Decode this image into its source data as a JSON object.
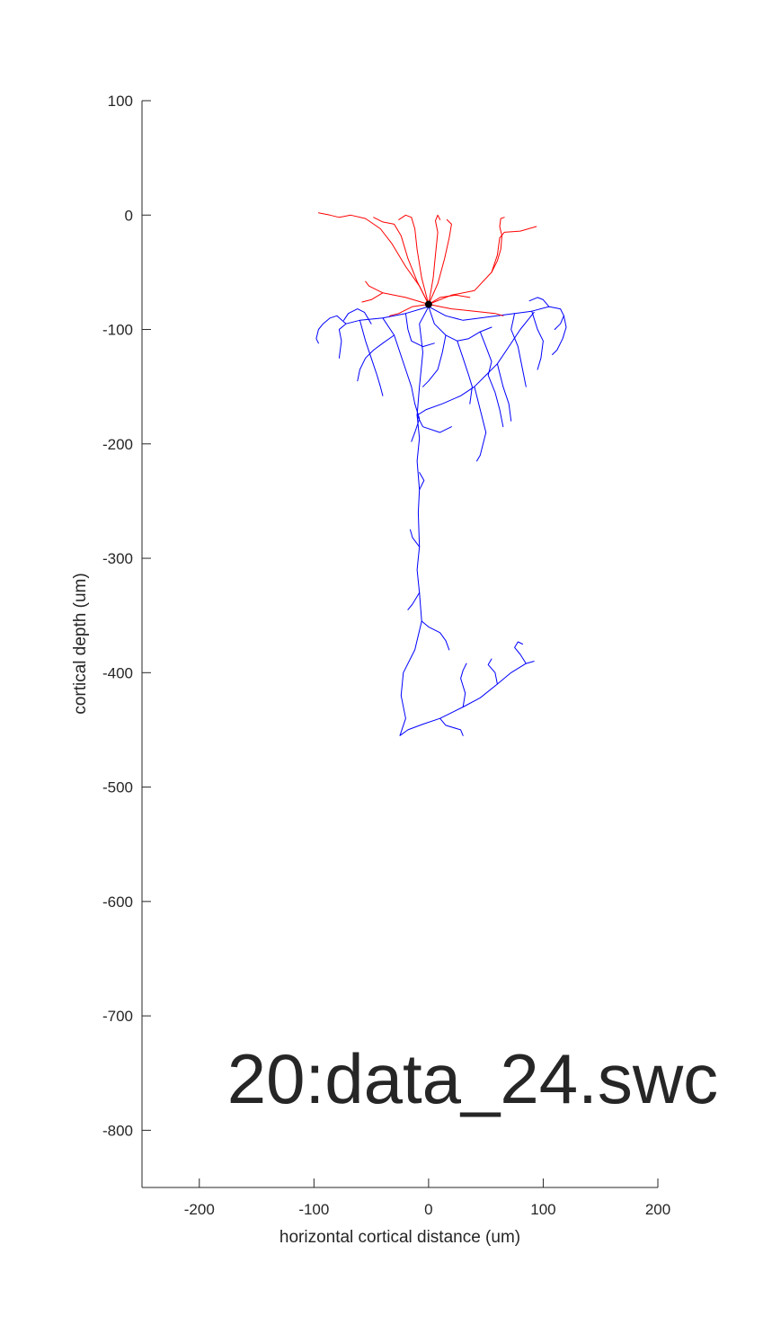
{
  "chart_data": {
    "type": "line",
    "title": "20:data_24.swc",
    "xlabel": "horizontal cortical distance (um)",
    "ylabel": "cortical depth (um)",
    "xlim": [
      -250,
      200
    ],
    "ylim": [
      -850,
      100
    ],
    "x_ticks": [
      -200,
      -100,
      0,
      100,
      200
    ],
    "y_ticks": [
      100,
      0,
      -100,
      -200,
      -300,
      -400,
      -500,
      -600,
      -700,
      -800
    ],
    "x_tick_labels": [
      "-200",
      "-100",
      "0",
      "100",
      "200"
    ],
    "y_tick_labels": [
      "100",
      "0",
      "-100",
      "-200",
      "-300",
      "-400",
      "-500",
      "-600",
      "-700",
      "-800"
    ],
    "grid": false,
    "box": "left-bottom axes only",
    "colors": {
      "dendrite": "#ff0000",
      "axon": "#0000ff",
      "soma": "#000000",
      "axes": "#262626"
    },
    "soma": {
      "x": 0,
      "y": -78
    },
    "dendrites": [
      [
        [
          0,
          -78
        ],
        [
          -8,
          -62
        ],
        [
          -20,
          -45
        ],
        [
          -32,
          -25
        ],
        [
          -42,
          -12
        ],
        [
          -55,
          -3
        ],
        [
          -68,
          0
        ],
        [
          -78,
          -2
        ],
        [
          -86,
          0
        ],
        [
          -96,
          2
        ]
      ],
      [
        [
          0,
          -78
        ],
        [
          -10,
          -58
        ],
        [
          -18,
          -38
        ],
        [
          -24,
          -18
        ],
        [
          -30,
          -8
        ],
        [
          -40,
          -6
        ],
        [
          -48,
          -2
        ]
      ],
      [
        [
          0,
          -78
        ],
        [
          -6,
          -55
        ],
        [
          -10,
          -30
        ],
        [
          -12,
          -12
        ],
        [
          -15,
          -2
        ],
        [
          -20,
          0
        ],
        [
          -26,
          -4
        ]
      ],
      [
        [
          0,
          -78
        ],
        [
          4,
          -55
        ],
        [
          6,
          -35
        ],
        [
          8,
          -15
        ],
        [
          6,
          -5
        ],
        [
          8,
          0
        ],
        [
          10,
          -4
        ]
      ],
      [
        [
          0,
          -78
        ],
        [
          8,
          -60
        ],
        [
          14,
          -38
        ],
        [
          18,
          -20
        ],
        [
          20,
          -8
        ],
        [
          16,
          -4
        ]
      ],
      [
        [
          0,
          -78
        ],
        [
          20,
          -70
        ],
        [
          40,
          -66
        ],
        [
          55,
          -50
        ],
        [
          60,
          -35
        ],
        [
          62,
          -20
        ],
        [
          66,
          -15
        ],
        [
          80,
          -14
        ],
        [
          94,
          -10
        ]
      ],
      [
        [
          55,
          -50
        ],
        [
          60,
          -40
        ],
        [
          63,
          -30
        ],
        [
          64,
          -18
        ],
        [
          62,
          -10
        ],
        [
          63,
          -3
        ],
        [
          66,
          -2
        ]
      ],
      [
        [
          0,
          -78
        ],
        [
          -20,
          -72
        ],
        [
          -40,
          -68
        ],
        [
          -52,
          -62
        ],
        [
          -55,
          -58
        ]
      ],
      [
        [
          0,
          -78
        ],
        [
          -14,
          -80
        ],
        [
          -26,
          -86
        ],
        [
          -34,
          -88
        ]
      ],
      [
        [
          0,
          -78
        ],
        [
          20,
          -82
        ],
        [
          40,
          -84
        ],
        [
          58,
          -86
        ],
        [
          65,
          -88
        ]
      ],
      [
        [
          0,
          -78
        ],
        [
          10,
          -72
        ],
        [
          24,
          -70
        ],
        [
          36,
          -72
        ]
      ],
      [
        [
          -40,
          -68
        ],
        [
          -50,
          -74
        ],
        [
          -58,
          -76
        ]
      ]
    ],
    "axons": [
      [
        [
          0,
          -80
        ],
        [
          -8,
          -95
        ],
        [
          -5,
          -120
        ],
        [
          -8,
          -150
        ],
        [
          -10,
          -175
        ],
        [
          -8,
          -195
        ],
        [
          -10,
          -215
        ],
        [
          -8,
          -240
        ],
        [
          -9,
          -260
        ],
        [
          -8,
          -290
        ],
        [
          -10,
          -310
        ],
        [
          -8,
          -330
        ],
        [
          -6,
          -355
        ],
        [
          -12,
          -380
        ],
        [
          -22,
          -400
        ],
        [
          -24,
          -420
        ],
        [
          -20,
          -440
        ],
        [
          -25,
          -455
        ],
        [
          -18,
          -450
        ],
        [
          -5,
          -445
        ],
        [
          10,
          -440
        ],
        [
          30,
          -430
        ],
        [
          45,
          -422
        ],
        [
          60,
          -410
        ],
        [
          72,
          -400
        ],
        [
          85,
          -392
        ],
        [
          92,
          -390
        ]
      ],
      [
        [
          85,
          -392
        ],
        [
          80,
          -384
        ],
        [
          75,
          -378
        ],
        [
          78,
          -373
        ],
        [
          82,
          -375
        ]
      ],
      [
        [
          60,
          -410
        ],
        [
          58,
          -400
        ],
        [
          52,
          -393
        ],
        [
          55,
          -388
        ]
      ],
      [
        [
          30,
          -430
        ],
        [
          32,
          -418
        ],
        [
          28,
          -405
        ],
        [
          30,
          -398
        ],
        [
          33,
          -392
        ]
      ],
      [
        [
          10,
          -440
        ],
        [
          15,
          -446
        ],
        [
          28,
          -450
        ],
        [
          30,
          -455
        ]
      ],
      [
        [
          -6,
          -355
        ],
        [
          0,
          -360
        ],
        [
          10,
          -365
        ],
        [
          15,
          -372
        ],
        [
          18,
          -380
        ]
      ],
      [
        [
          -8,
          -330
        ],
        [
          -14,
          -340
        ],
        [
          -18,
          -345
        ]
      ],
      [
        [
          -8,
          -290
        ],
        [
          -14,
          -282
        ],
        [
          -16,
          -275
        ]
      ],
      [
        [
          -8,
          -240
        ],
        [
          -4,
          -232
        ],
        [
          -8,
          -225
        ]
      ],
      [
        [
          -10,
          -175
        ],
        [
          -2,
          -170
        ],
        [
          12,
          -165
        ],
        [
          28,
          -158
        ],
        [
          40,
          -150
        ],
        [
          50,
          -140
        ],
        [
          60,
          -130
        ],
        [
          70,
          -115
        ],
        [
          80,
          -100
        ],
        [
          88,
          -90
        ],
        [
          92,
          -85
        ]
      ],
      [
        [
          -10,
          -175
        ],
        [
          -5,
          -185
        ],
        [
          10,
          -190
        ],
        [
          20,
          -185
        ]
      ],
      [
        [
          40,
          -150
        ],
        [
          45,
          -170
        ],
        [
          50,
          -190
        ],
        [
          45,
          -210
        ],
        [
          42,
          -215
        ]
      ],
      [
        [
          60,
          -130
        ],
        [
          65,
          -150
        ],
        [
          70,
          -165
        ],
        [
          72,
          -180
        ]
      ],
      [
        [
          0,
          -80
        ],
        [
          -20,
          -86
        ],
        [
          -40,
          -90
        ],
        [
          -60,
          -92
        ],
        [
          -72,
          -95
        ],
        [
          -78,
          -100
        ],
        [
          -76,
          -110
        ],
        [
          -78,
          -125
        ]
      ],
      [
        [
          -60,
          -92
        ],
        [
          -55,
          -110
        ],
        [
          -50,
          -125
        ],
        [
          -45,
          -140
        ],
        [
          -42,
          -150
        ],
        [
          -40,
          -158
        ]
      ],
      [
        [
          -40,
          -90
        ],
        [
          -30,
          -105
        ],
        [
          -25,
          -120
        ],
        [
          -20,
          -135
        ],
        [
          -15,
          -150
        ],
        [
          -12,
          -165
        ]
      ],
      [
        [
          0,
          -80
        ],
        [
          15,
          -88
        ],
        [
          30,
          -92
        ],
        [
          45,
          -90
        ],
        [
          60,
          -88
        ],
        [
          75,
          -86
        ],
        [
          90,
          -84
        ],
        [
          105,
          -80
        ],
        [
          115,
          -82
        ],
        [
          118,
          -88
        ],
        [
          115,
          -95
        ],
        [
          110,
          -100
        ]
      ],
      [
        [
          118,
          -88
        ],
        [
          120,
          -98
        ],
        [
          117,
          -108
        ],
        [
          112,
          -118
        ],
        [
          108,
          -122
        ]
      ],
      [
        [
          90,
          -84
        ],
        [
          95,
          -100
        ],
        [
          100,
          -110
        ],
        [
          98,
          -125
        ],
        [
          95,
          -135
        ]
      ],
      [
        [
          75,
          -86
        ],
        [
          72,
          -100
        ],
        [
          78,
          -115
        ],
        [
          82,
          -135
        ],
        [
          85,
          -150
        ]
      ],
      [
        [
          0,
          -80
        ],
        [
          5,
          -95
        ],
        [
          15,
          -105
        ],
        [
          25,
          -110
        ],
        [
          35,
          -108
        ],
        [
          45,
          -102
        ],
        [
          55,
          -98
        ]
      ],
      [
        [
          15,
          -105
        ],
        [
          12,
          -120
        ],
        [
          8,
          -135
        ],
        [
          0,
          -145
        ],
        [
          -5,
          -150
        ]
      ],
      [
        [
          25,
          -110
        ],
        [
          30,
          -125
        ],
        [
          35,
          -140
        ],
        [
          38,
          -150
        ],
        [
          36,
          -165
        ]
      ],
      [
        [
          -20,
          -86
        ],
        [
          -18,
          -100
        ],
        [
          -15,
          -110
        ],
        [
          -5,
          -115
        ],
        [
          5,
          -112
        ]
      ],
      [
        [
          -50,
          -95
        ],
        [
          -56,
          -85
        ],
        [
          -62,
          -82
        ],
        [
          -70,
          -86
        ],
        [
          -74,
          -92
        ]
      ],
      [
        [
          -72,
          -95
        ],
        [
          -80,
          -88
        ],
        [
          -86,
          -90
        ],
        [
          -92,
          -95
        ],
        [
          -96,
          -100
        ],
        [
          -98,
          -108
        ],
        [
          -96,
          -112
        ]
      ],
      [
        [
          45,
          -102
        ],
        [
          50,
          -115
        ],
        [
          55,
          -128
        ],
        [
          52,
          -140
        ],
        [
          58,
          -155
        ],
        [
          62,
          -170
        ],
        [
          65,
          -185
        ]
      ],
      [
        [
          -30,
          -105
        ],
        [
          -40,
          -112
        ],
        [
          -48,
          -118
        ],
        [
          -55,
          -125
        ],
        [
          -60,
          -135
        ],
        [
          -62,
          -145
        ]
      ],
      [
        [
          105,
          -80
        ],
        [
          100,
          -74
        ],
        [
          95,
          -72
        ],
        [
          88,
          -75
        ]
      ],
      [
        [
          -12,
          -165
        ],
        [
          -8,
          -178
        ],
        [
          -12,
          -190
        ],
        [
          -15,
          -198
        ]
      ]
    ]
  }
}
